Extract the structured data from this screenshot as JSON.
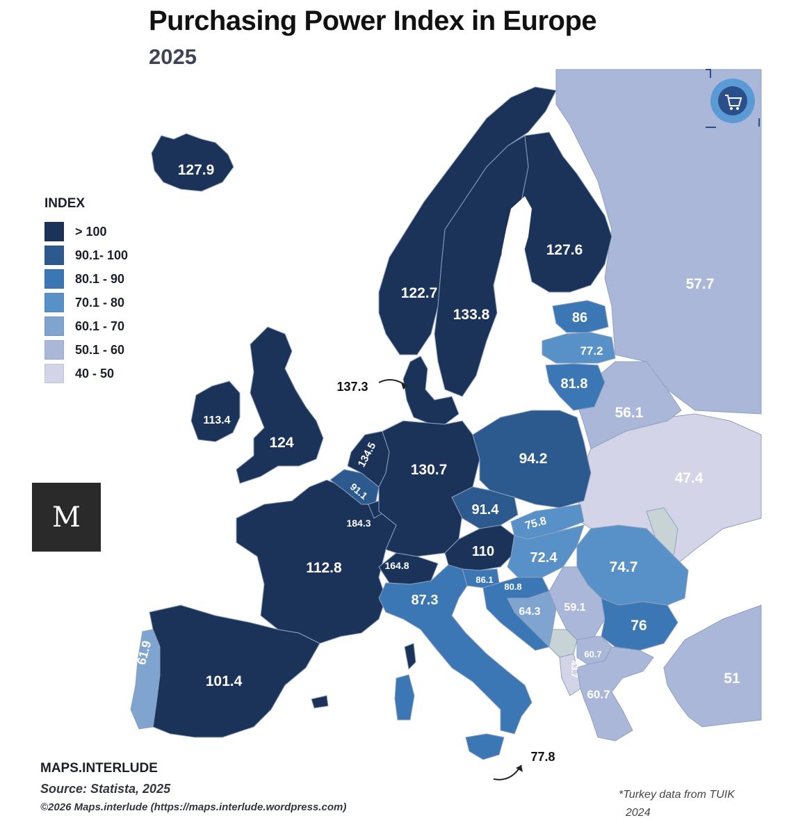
{
  "title": "Purchasing Power Index in Europe",
  "subtitle": "2025",
  "colors": {
    "c1": "#1b3358",
    "c2": "#2c5a8e",
    "c3": "#3c77b5",
    "c4": "#5891c8",
    "c5": "#7fa4cf",
    "c6": "#aab7d8",
    "c7": "#d3d4e8",
    "border": "#8fa0bf",
    "nodata": "#c8d3d6"
  },
  "legend": {
    "title": "INDEX",
    "items": [
      {
        "label": "> 100",
        "color": "#1b3358"
      },
      {
        "label": "90.1- 100",
        "color": "#2c5a8e"
      },
      {
        "label": "80.1 - 90",
        "color": "#3c77b5"
      },
      {
        "label": "70.1 - 80",
        "color": "#5891c8"
      },
      {
        "label": "60.1 - 70",
        "color": "#7fa4cf"
      },
      {
        "label": "50.1 - 60",
        "color": "#aab7d8"
      },
      {
        "label": "40 - 50",
        "color": "#d3d4e8"
      }
    ]
  },
  "values": {
    "iceland": "127.9",
    "norway": "122.7",
    "sweden": "133.8",
    "finland": "127.6",
    "russia": "57.7",
    "estonia": "86",
    "latvia": "77.2",
    "lithuania": "81.8",
    "belarus": "56.1",
    "ukraine": "47.4",
    "denmark": "137.3",
    "ireland": "113.4",
    "uk": "124",
    "netherlands": "134.5",
    "belgium": "91.1",
    "luxembourg": "184.3",
    "germany": "130.7",
    "poland": "94.2",
    "czechia": "91.4",
    "slovakia": "75.8",
    "austria": "110",
    "hungary": "72.4",
    "romania": "74.7",
    "switzerland": "164.8",
    "slovenia": "86.1",
    "croatia": "80.8",
    "bosnia": "64.3",
    "serbia": "59.1",
    "bulgaria": "76",
    "north_macedonia": "60.7",
    "albania": "43.7",
    "greece": "60.7",
    "turkey": "51",
    "france": "112.8",
    "italy": "87.3",
    "portugal": "61.9",
    "spain": "101.4",
    "malta": "77.8"
  },
  "footer": {
    "brand": "MAPS.INTERLUDE",
    "source": "Source: Statista, 2025",
    "copyright": "©2026 Maps.interlude (https://maps.interlude.wordpress.com)",
    "note_line1": "*Turkey data from TUIK",
    "note_line2": "2024"
  },
  "logo_icon": "shopping-cart-gear-icon",
  "brand_logo": "M"
}
